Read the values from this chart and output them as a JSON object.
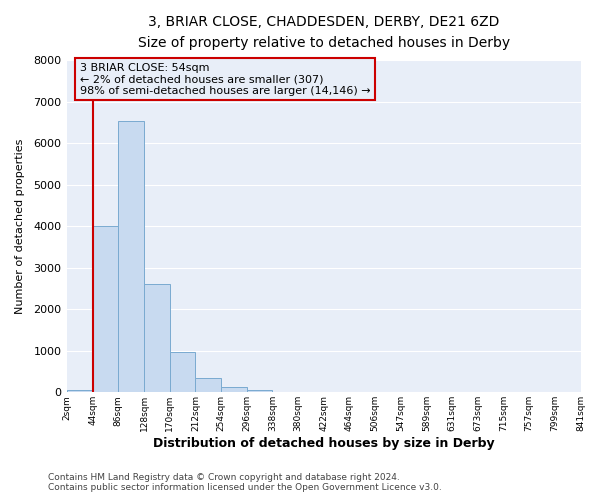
{
  "title": "3, BRIAR CLOSE, CHADDESDEN, DERBY, DE21 6ZD",
  "subtitle": "Size of property relative to detached houses in Derby",
  "xlabel": "Distribution of detached houses by size in Derby",
  "ylabel": "Number of detached properties",
  "bar_values": [
    60,
    4000,
    6550,
    2600,
    960,
    340,
    130,
    60,
    0,
    0,
    0,
    0,
    0,
    0,
    0,
    0,
    0,
    0,
    0,
    0
  ],
  "bar_labels": [
    "2sqm",
    "44sqm",
    "86sqm",
    "128sqm",
    "170sqm",
    "212sqm",
    "254sqm",
    "296sqm",
    "338sqm",
    "380sqm",
    "422sqm",
    "464sqm",
    "506sqm",
    "547sqm",
    "589sqm",
    "631sqm",
    "673sqm",
    "715sqm",
    "757sqm",
    "799sqm",
    "841sqm"
  ],
  "bar_color_fill": "#c8daf0",
  "bar_color_edge": "#7aaad0",
  "vline_color": "#cc0000",
  "annotation_box_text": "3 BRIAR CLOSE: 54sqm\n← 2% of detached houses are smaller (307)\n98% of semi-detached houses are larger (14,146) →",
  "annotation_box_color": "#cc0000",
  "annotation_text_color": "#000000",
  "ylim": [
    0,
    8000
  ],
  "yticks": [
    0,
    1000,
    2000,
    3000,
    4000,
    5000,
    6000,
    7000,
    8000
  ],
  "footer1": "Contains HM Land Registry data © Crown copyright and database right 2024.",
  "footer2": "Contains public sector information licensed under the Open Government Licence v3.0.",
  "bg_color": "#ffffff",
  "plot_bg_color": "#e8eef8",
  "grid_color": "#ffffff",
  "num_bars": 20
}
